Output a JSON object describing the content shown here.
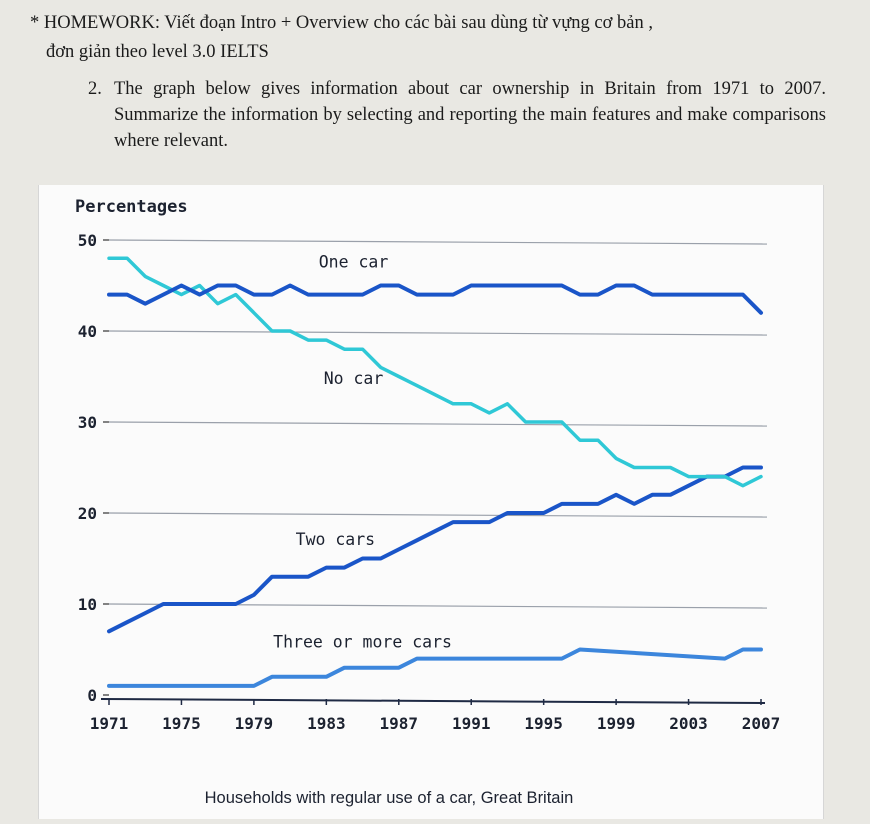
{
  "homework": {
    "heading": "* HOMEWORK: Viết đoạn Intro + Overview cho các bài sau dùng từ vựng cơ bản ,",
    "heading_cont": "đơn giản theo level 3.0 IELTS",
    "task_number": "2.",
    "task_text": "The graph below gives information about car ownership in Britain from 1971 to 2007. Summarize the information by selecting and reporting the main features and make comparisons where relevant."
  },
  "chart_data": {
    "type": "line",
    "title": "Households with regular use of a car, Great Britain",
    "ylabel": "Percentages",
    "xlabel": "",
    "ylim": [
      0,
      50
    ],
    "xlim": [
      1971,
      2007
    ],
    "yticks": [
      "0",
      "10",
      "20",
      "30",
      "40",
      "50"
    ],
    "xticks": [
      "1971",
      "1975",
      "1979",
      "1983",
      "1987",
      "1991",
      "1995",
      "1999",
      "2003",
      "2007"
    ],
    "grid": true,
    "legend": "inline labels",
    "series": [
      {
        "name": "One car",
        "color": "#1a55c8",
        "x": [
          1971,
          1972,
          1973,
          1974,
          1975,
          1976,
          1977,
          1978,
          1979,
          1980,
          1981,
          1982,
          1983,
          1984,
          1985,
          1986,
          1987,
          1988,
          1989,
          1990,
          1991,
          1992,
          1993,
          1994,
          1995,
          1996,
          1997,
          1998,
          1999,
          2000,
          2001,
          2002,
          2003,
          2004,
          2005,
          2006,
          2007
        ],
        "values": [
          44,
          44,
          43,
          44,
          45,
          44,
          45,
          45,
          44,
          44,
          45,
          44,
          44,
          44,
          44,
          45,
          45,
          44,
          44,
          44,
          45,
          45,
          45,
          45,
          45,
          45,
          44,
          44,
          45,
          45,
          44,
          44,
          44,
          44,
          44,
          44,
          42
        ]
      },
      {
        "name": "No car",
        "color": "#2fc8d6",
        "x": [
          1971,
          1972,
          1973,
          1974,
          1975,
          1976,
          1977,
          1978,
          1979,
          1980,
          1981,
          1982,
          1983,
          1984,
          1985,
          1986,
          1987,
          1988,
          1989,
          1990,
          1991,
          1992,
          1993,
          1994,
          1995,
          1996,
          1997,
          1998,
          1999,
          2000,
          2001,
          2002,
          2003,
          2004,
          2005,
          2006,
          2007
        ],
        "values": [
          48,
          48,
          46,
          45,
          44,
          45,
          43,
          44,
          42,
          40,
          40,
          39,
          39,
          38,
          38,
          36,
          35,
          34,
          33,
          32,
          32,
          31,
          32,
          30,
          30,
          30,
          28,
          28,
          26,
          25,
          25,
          25,
          24,
          24,
          24,
          23,
          24
        ]
      },
      {
        "name": "Two cars",
        "color": "#1a55c8",
        "x": [
          1971,
          1972,
          1973,
          1974,
          1975,
          1976,
          1977,
          1978,
          1979,
          1980,
          1981,
          1982,
          1983,
          1984,
          1985,
          1986,
          1987,
          1988,
          1989,
          1990,
          1991,
          1992,
          1993,
          1994,
          1995,
          1996,
          1997,
          1998,
          1999,
          2000,
          2001,
          2002,
          2003,
          2004,
          2005,
          2006,
          2007
        ],
        "values": [
          7,
          8,
          9,
          10,
          10,
          10,
          10,
          10,
          11,
          13,
          13,
          13,
          14,
          14,
          15,
          15,
          16,
          17,
          18,
          19,
          19,
          19,
          20,
          20,
          20,
          21,
          21,
          21,
          22,
          21,
          22,
          22,
          23,
          24,
          24,
          25,
          25
        ]
      },
      {
        "name": "Three or more cars",
        "color": "#3c86dc",
        "x": [
          1971,
          1979,
          1980,
          1983,
          1984,
          1987,
          1988,
          1991,
          1996,
          1997,
          2005,
          2006,
          2007
        ],
        "values": [
          1,
          1,
          2,
          2,
          3,
          3,
          4,
          4,
          4,
          5,
          4,
          5,
          5
        ]
      }
    ]
  }
}
